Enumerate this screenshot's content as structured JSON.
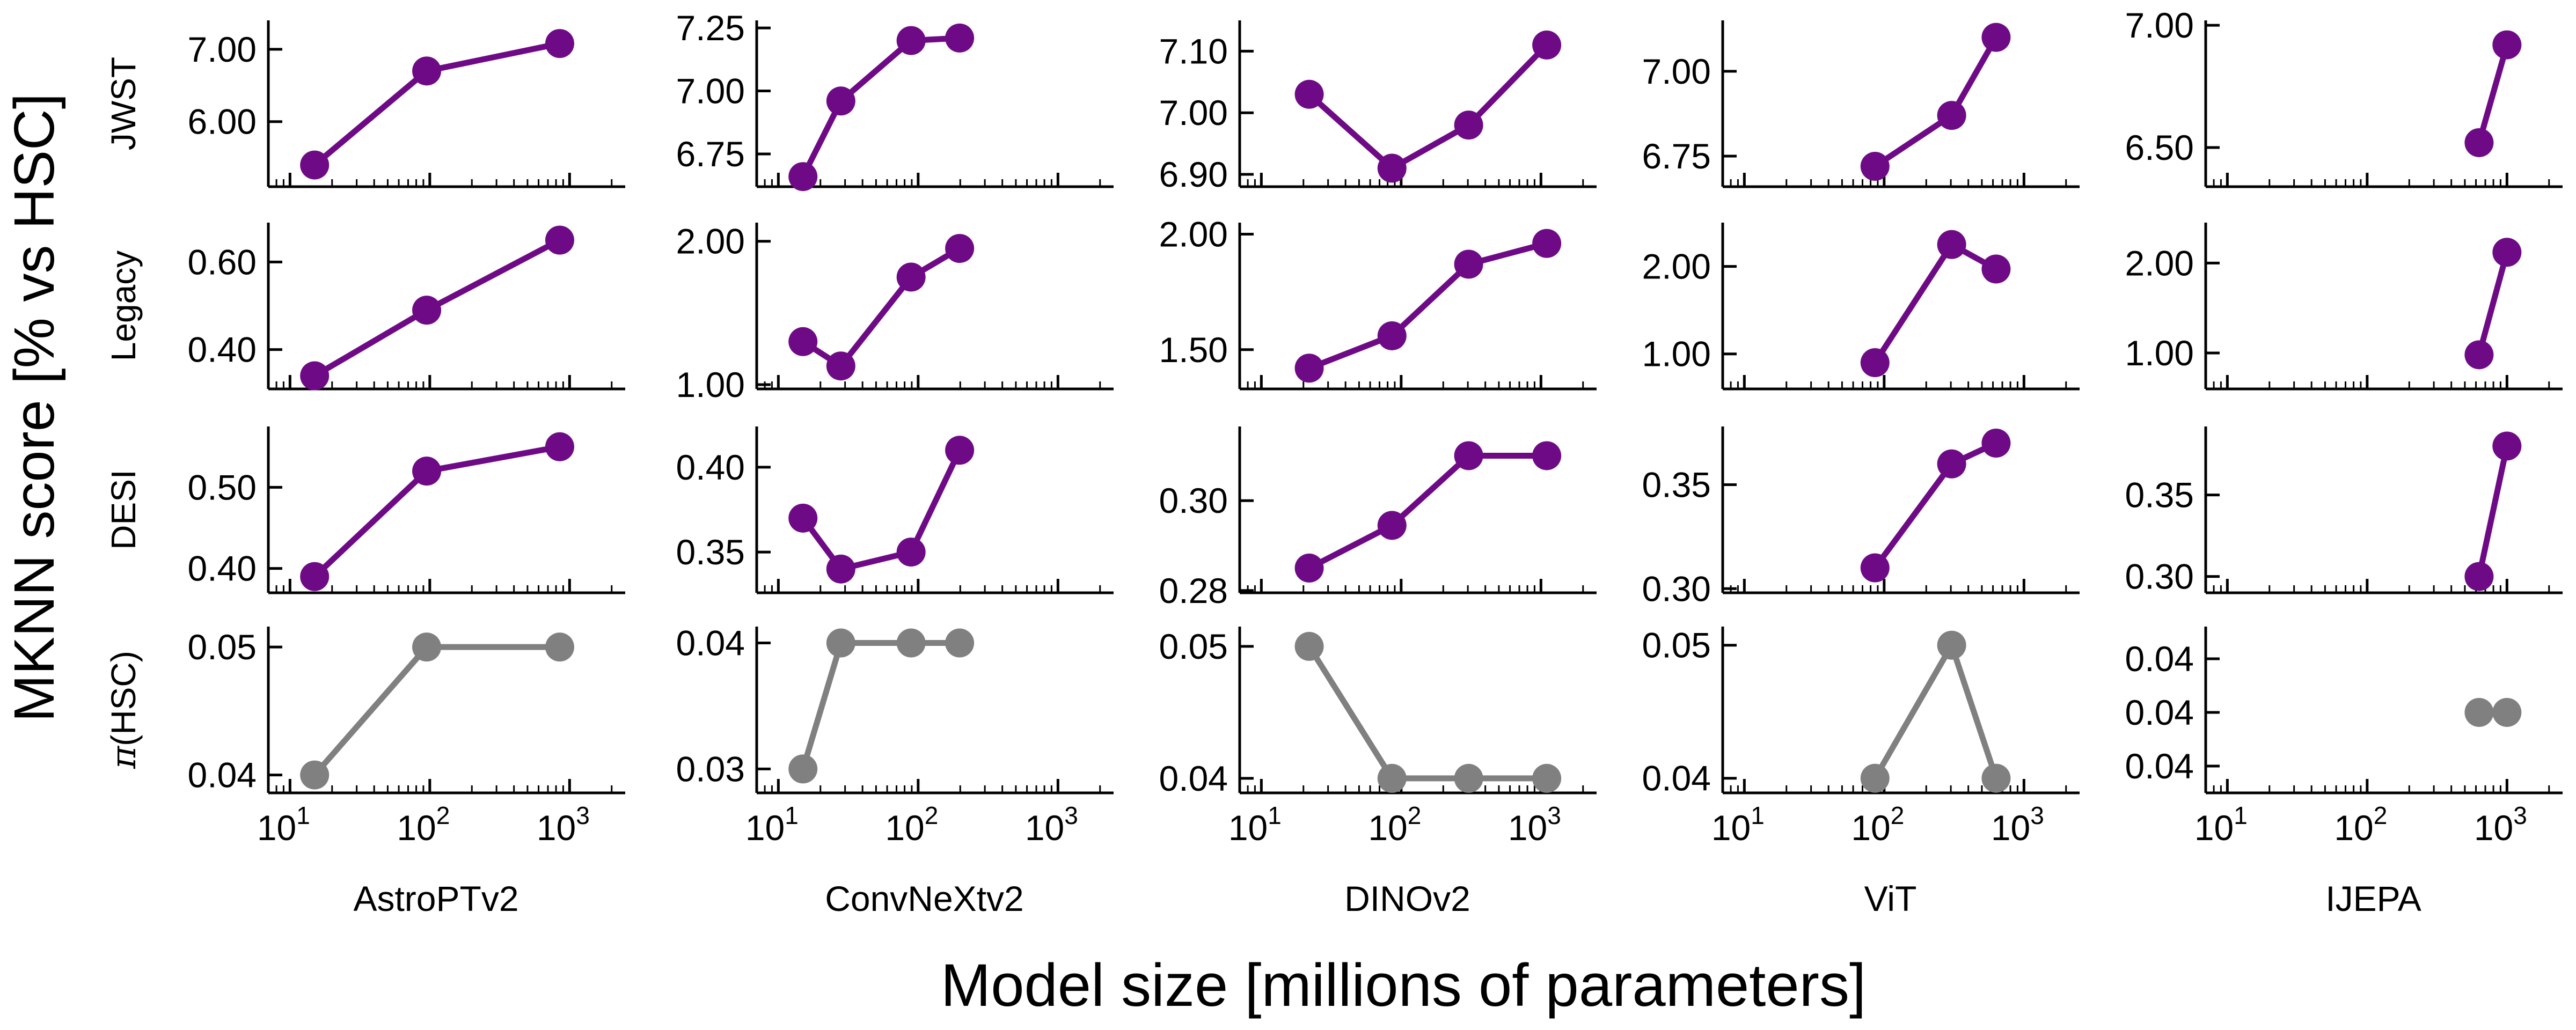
{
  "figure": {
    "supylabel": "MKNN score [% vs HSC]",
    "supxlabel": "Model size [millions of parameters]",
    "colors": {
      "primary": "#6e0a86",
      "secondary": "#808080"
    }
  },
  "chart_data": {
    "type": "line",
    "xscale": "log",
    "xlim": [
      7,
      2500
    ],
    "xticks": [
      10,
      100,
      1000
    ],
    "xtick_labels": [
      "10",
      "10",
      "10"
    ],
    "xtick_exponents": [
      "1",
      "2",
      "3"
    ],
    "rows": [
      {
        "label": "JWST",
        "color": "primary",
        "label_prefix": "",
        "label_suffix": ""
      },
      {
        "label": "Legacy",
        "color": "primary",
        "label_prefix": "",
        "label_suffix": ""
      },
      {
        "label": "DESI",
        "color": "primary",
        "label_prefix": "",
        "label_suffix": ""
      },
      {
        "label": "(HSC)",
        "color": "secondary",
        "label_prefix": "π",
        "label_suffix": ""
      }
    ],
    "columns": [
      {
        "name": "AstroPTv2",
        "panels": [
          {
            "ylim": [
              5.1,
              7.4
            ],
            "yticks": [
              6.0,
              7.0
            ],
            "ytick_labels": [
              "6.00",
              "7.00"
            ],
            "x": [
              15,
              95,
              850
            ],
            "y": [
              5.4,
              6.7,
              7.08
            ]
          },
          {
            "ylim": [
              0.31,
              0.69
            ],
            "yticks": [
              0.4,
              0.6
            ],
            "ytick_labels": [
              "0.40",
              "0.60"
            ],
            "x": [
              15,
              95,
              850
            ],
            "y": [
              0.34,
              0.49,
              0.65
            ]
          },
          {
            "ylim": [
              0.37,
              0.575
            ],
            "yticks": [
              0.4,
              0.5
            ],
            "ytick_labels": [
              "0.40",
              "0.50"
            ],
            "x": [
              15,
              95,
              850
            ],
            "y": [
              0.39,
              0.52,
              0.55
            ]
          },
          {
            "ylim": [
              0.0386,
              0.0516
            ],
            "yticks": [
              0.04,
              0.05
            ],
            "ytick_labels": [
              "0.04",
              "0.05"
            ],
            "x": [
              15,
              95,
              850
            ],
            "y": [
              0.04,
              0.05,
              0.05
            ]
          }
        ]
      },
      {
        "name": "ConvNeXtv2",
        "panels": [
          {
            "ylim": [
              6.62,
              7.28
            ],
            "yticks": [
              6.75,
              7.0,
              7.25
            ],
            "ytick_labels": [
              "6.75",
              "7.00",
              "7.25"
            ],
            "x": [
              15,
              28,
              89,
              198
            ],
            "y": [
              6.66,
              6.96,
              7.2,
              7.21
            ]
          },
          {
            "ylim": [
              0.97,
              2.13
            ],
            "yticks": [
              1.0,
              2.0
            ],
            "ytick_labels": [
              "1.00",
              "2.00"
            ],
            "x": [
              15,
              28,
              89,
              198
            ],
            "y": [
              1.3,
              1.13,
              1.75,
              1.95
            ]
          },
          {
            "ylim": [
              0.326,
              0.424
            ],
            "yticks": [
              0.35,
              0.4
            ],
            "ytick_labels": [
              "0.35",
              "0.40"
            ],
            "x": [
              15,
              28,
              89,
              198
            ],
            "y": [
              0.37,
              0.34,
              0.35,
              0.41
            ]
          },
          {
            "ylim": [
              0.0281,
              0.0413
            ],
            "yticks": [
              0.03,
              0.04
            ],
            "ytick_labels": [
              "0.03",
              "0.04"
            ],
            "x": [
              15,
              28,
              89,
              198
            ],
            "y": [
              0.03,
              0.04,
              0.04,
              0.04
            ]
          }
        ]
      },
      {
        "name": "DINOv2",
        "panels": [
          {
            "ylim": [
              6.88,
              7.15
            ],
            "yticks": [
              6.9,
              7.0,
              7.1
            ],
            "ytick_labels": [
              "6.90",
              "7.00",
              "7.10"
            ],
            "x": [
              22,
              86,
              304,
              1100
            ],
            "y": [
              7.03,
              6.91,
              6.98,
              7.11
            ]
          },
          {
            "ylim": [
              1.33,
              2.05
            ],
            "yticks": [
              1.5,
              2.0
            ],
            "ytick_labels": [
              "1.50",
              "2.00"
            ],
            "x": [
              22,
              86,
              304,
              1100
            ],
            "y": [
              1.42,
              1.56,
              1.87,
              1.96
            ]
          },
          {
            "ylim": [
              0.2795,
              0.3165
            ],
            "yticks": [
              0.28,
              0.3
            ],
            "ytick_labels": [
              "0.28",
              "0.30"
            ],
            "x": [
              22,
              86,
              304,
              1100
            ],
            "y": [
              0.285,
              0.2945,
              0.31,
              0.31
            ]
          },
          {
            "ylim": [
              0.0389,
              0.0515
            ],
            "yticks": [
              0.04,
              0.05
            ],
            "ytick_labels": [
              "0.04",
              "0.05"
            ],
            "x": [
              22,
              86,
              304,
              1100
            ],
            "y": [
              0.05,
              0.04,
              0.04,
              0.04
            ]
          }
        ]
      },
      {
        "name": "ViT",
        "panels": [
          {
            "ylim": [
              6.66,
              7.15
            ],
            "yticks": [
              6.75,
              7.0
            ],
            "ytick_labels": [
              "6.75",
              "7.00"
            ],
            "x": [
              86,
              304,
              632
            ],
            "y": [
              6.72,
              6.87,
              7.1
            ]
          },
          {
            "ylim": [
              0.6,
              2.5
            ],
            "yticks": [
              1.0,
              2.0
            ],
            "ytick_labels": [
              "1.00",
              "2.00"
            ],
            "x": [
              86,
              304,
              632
            ],
            "y": [
              0.9,
              2.25,
              1.97
            ]
          },
          {
            "ylim": [
              0.298,
              0.378
            ],
            "yticks": [
              0.3,
              0.35
            ],
            "ytick_labels": [
              "0.30",
              "0.35"
            ],
            "x": [
              86,
              304,
              632
            ],
            "y": [
              0.31,
              0.36,
              0.37
            ]
          },
          {
            "ylim": [
              0.0389,
              0.0514
            ],
            "yticks": [
              0.04,
              0.05
            ],
            "ytick_labels": [
              "0.04",
              "0.05"
            ],
            "x": [
              86,
              304,
              632
            ],
            "y": [
              0.04,
              0.05,
              0.04
            ]
          }
        ]
      },
      {
        "name": "IJEPA",
        "panels": [
          {
            "ylim": [
              6.34,
              7.02
            ],
            "yticks": [
              6.5,
              7.0
            ],
            "ytick_labels": [
              "6.50",
              "7.00"
            ],
            "x": [
              632,
              1000
            ],
            "y": [
              6.52,
              6.92
            ]
          },
          {
            "ylim": [
              0.6,
              2.45
            ],
            "yticks": [
              1.0,
              2.0
            ],
            "ytick_labels": [
              "1.00",
              "2.00"
            ],
            "x": [
              632,
              1000
            ],
            "y": [
              0.98,
              2.12
            ]
          },
          {
            "ylim": [
              0.29,
              0.392
            ],
            "yticks": [
              0.3,
              0.35
            ],
            "ytick_labels": [
              "0.30",
              "0.35"
            ],
            "x": [
              632,
              1000
            ],
            "y": [
              0.3,
              0.38
            ]
          },
          {
            "ylim": [
              0.5,
              3.6
            ],
            "yticks": [
              1,
              2,
              3
            ],
            "ytick_labels": [
              "0.04",
              "0.04",
              "0.04"
            ],
            "x": [
              632,
              1000
            ],
            "y": [
              2,
              2
            ]
          }
        ]
      }
    ]
  }
}
